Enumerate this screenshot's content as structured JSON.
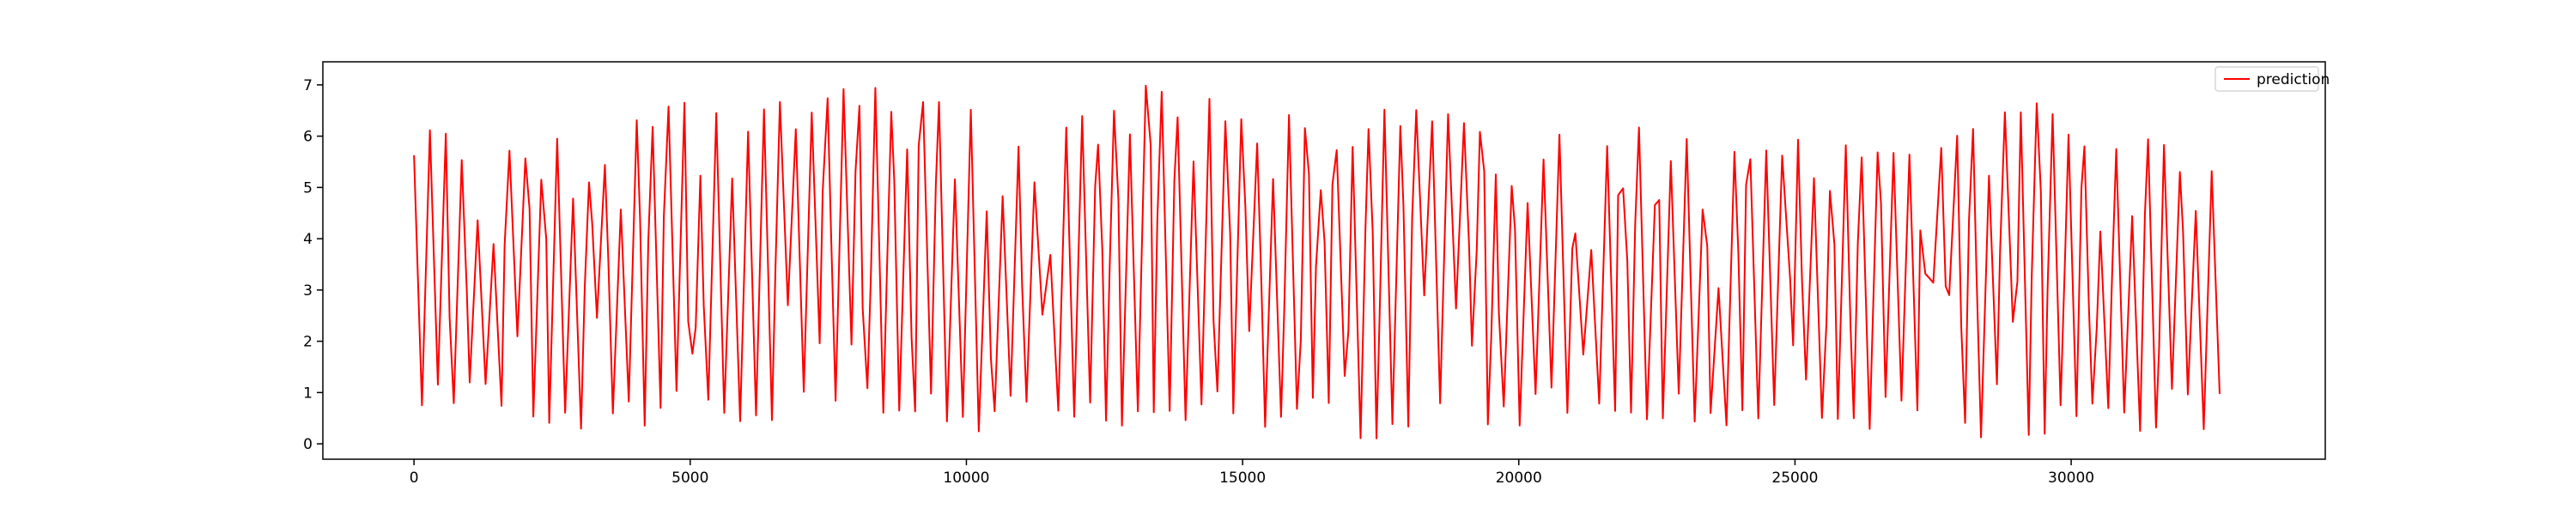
{
  "chart_data": {
    "type": "line",
    "title": "",
    "xlabel": "",
    "ylabel": "",
    "xlim": [
      -1650,
      34600
    ],
    "ylim": [
      -0.3,
      7.45
    ],
    "xticks": [
      0,
      5000,
      10000,
      15000,
      20000,
      25000,
      30000
    ],
    "xtick_labels": [
      "0",
      "5000",
      "10000",
      "15000",
      "20000",
      "25000",
      "30000"
    ],
    "yticks": [
      0,
      1,
      2,
      3,
      4,
      5,
      6,
      7
    ],
    "ytick_labels": [
      "0",
      "1",
      "2",
      "3",
      "4",
      "5",
      "6",
      "7"
    ],
    "grid": false,
    "legend": {
      "placement": "top-right",
      "entries": [
        "prediction"
      ]
    },
    "series": [
      {
        "name": "prediction",
        "color": "#ff0000",
        "x_start": 0,
        "x_end": 32800,
        "approx_cycle_length": 288,
        "approx_minimum": 0.05,
        "approx_maximum": 7.1,
        "peak_envelope": [
          [
            0,
            5.9
          ],
          [
            300,
            6.7
          ],
          [
            1000,
            5.8
          ],
          [
            2000,
            5.9
          ],
          [
            2500,
            6.8
          ],
          [
            3000,
            4.5
          ],
          [
            3500,
            6.4
          ],
          [
            4500,
            6.7
          ],
          [
            6500,
            7.0
          ],
          [
            8500,
            7.0
          ],
          [
            10000,
            6.7
          ],
          [
            10500,
            5.6
          ],
          [
            12000,
            6.5
          ],
          [
            13000,
            7.1
          ],
          [
            14000,
            6.9
          ],
          [
            15500,
            6.5
          ],
          [
            17000,
            6.2
          ],
          [
            17500,
            6.9
          ],
          [
            19000,
            6.5
          ],
          [
            20500,
            6.2
          ],
          [
            22000,
            6.2
          ],
          [
            24000,
            6.0
          ],
          [
            25000,
            6.2
          ],
          [
            26000,
            5.9
          ],
          [
            27500,
            6.0
          ],
          [
            28500,
            6.9
          ],
          [
            29500,
            6.7
          ],
          [
            30500,
            5.9
          ],
          [
            31500,
            6.1
          ],
          [
            32800,
            5.6
          ]
        ],
        "trough_envelope": [
          [
            0,
            0.5
          ],
          [
            2000,
            0.15
          ],
          [
            3500,
            0.3
          ],
          [
            5000,
            0.1
          ],
          [
            7000,
            0.5
          ],
          [
            9000,
            0.4
          ],
          [
            10000,
            0.05
          ],
          [
            12000,
            0.4
          ],
          [
            13000,
            0.15
          ],
          [
            15000,
            0.2
          ],
          [
            17000,
            0.1
          ],
          [
            19000,
            0.1
          ],
          [
            21000,
            0.3
          ],
          [
            23000,
            0.1
          ],
          [
            25000,
            0.2
          ],
          [
            27000,
            0.1
          ],
          [
            29000,
            0.1
          ],
          [
            31000,
            0.2
          ],
          [
            32800,
            0.3
          ]
        ]
      }
    ]
  }
}
